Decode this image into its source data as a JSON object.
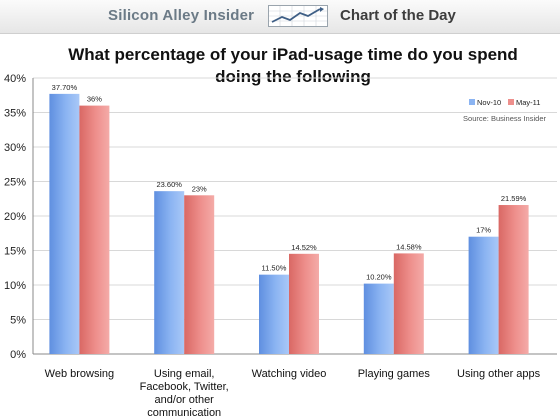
{
  "banner": {
    "brand": "Silicon Alley Insider",
    "section": "Chart of the Day",
    "logo_icon": "trend-line-chart-icon"
  },
  "chart_data": {
    "type": "bar",
    "title": "What percentage of your iPad-usage time do you spend doing the following",
    "title_lines": [
      "What percentage of your iPad-usage time do you spend",
      "doing the following"
    ],
    "categories": [
      "Web browsing",
      "Using email, Facebook, Twitter, and/or other communication",
      "Watching video",
      "Playing games",
      "Using other apps"
    ],
    "category_lines": [
      [
        "Web browsing"
      ],
      [
        "Using email,",
        "Facebook, Twitter,",
        "and/or other",
        "communication"
      ],
      [
        "Watching video"
      ],
      [
        "Playing games"
      ],
      [
        "Using other apps"
      ]
    ],
    "series": [
      {
        "name": "Nov-10",
        "values": [
          37.7,
          23.6,
          11.5,
          10.2,
          17
        ],
        "labels": [
          "37.70%",
          "23.60%",
          "11.50%",
          "10.20%",
          "17%"
        ],
        "color": "#8bb4f2"
      },
      {
        "name": "May-11",
        "values": [
          36,
          23,
          14.52,
          14.58,
          21.59
        ],
        "labels": [
          "36%",
          "23%",
          "14.52%",
          "14.58%",
          "21.59%"
        ],
        "color": "#ee8f8c"
      }
    ],
    "ylim": [
      0,
      40
    ],
    "yticks": [
      0,
      5,
      10,
      15,
      20,
      25,
      30,
      35,
      40
    ],
    "ytick_labels": [
      "0%",
      "5%",
      "10%",
      "15%",
      "20%",
      "25%",
      "30%",
      "35%",
      "40%"
    ],
    "xlabel": "",
    "ylabel": "",
    "source": "Source: Business Insider",
    "legend_position": "top-right",
    "grid": true
  }
}
